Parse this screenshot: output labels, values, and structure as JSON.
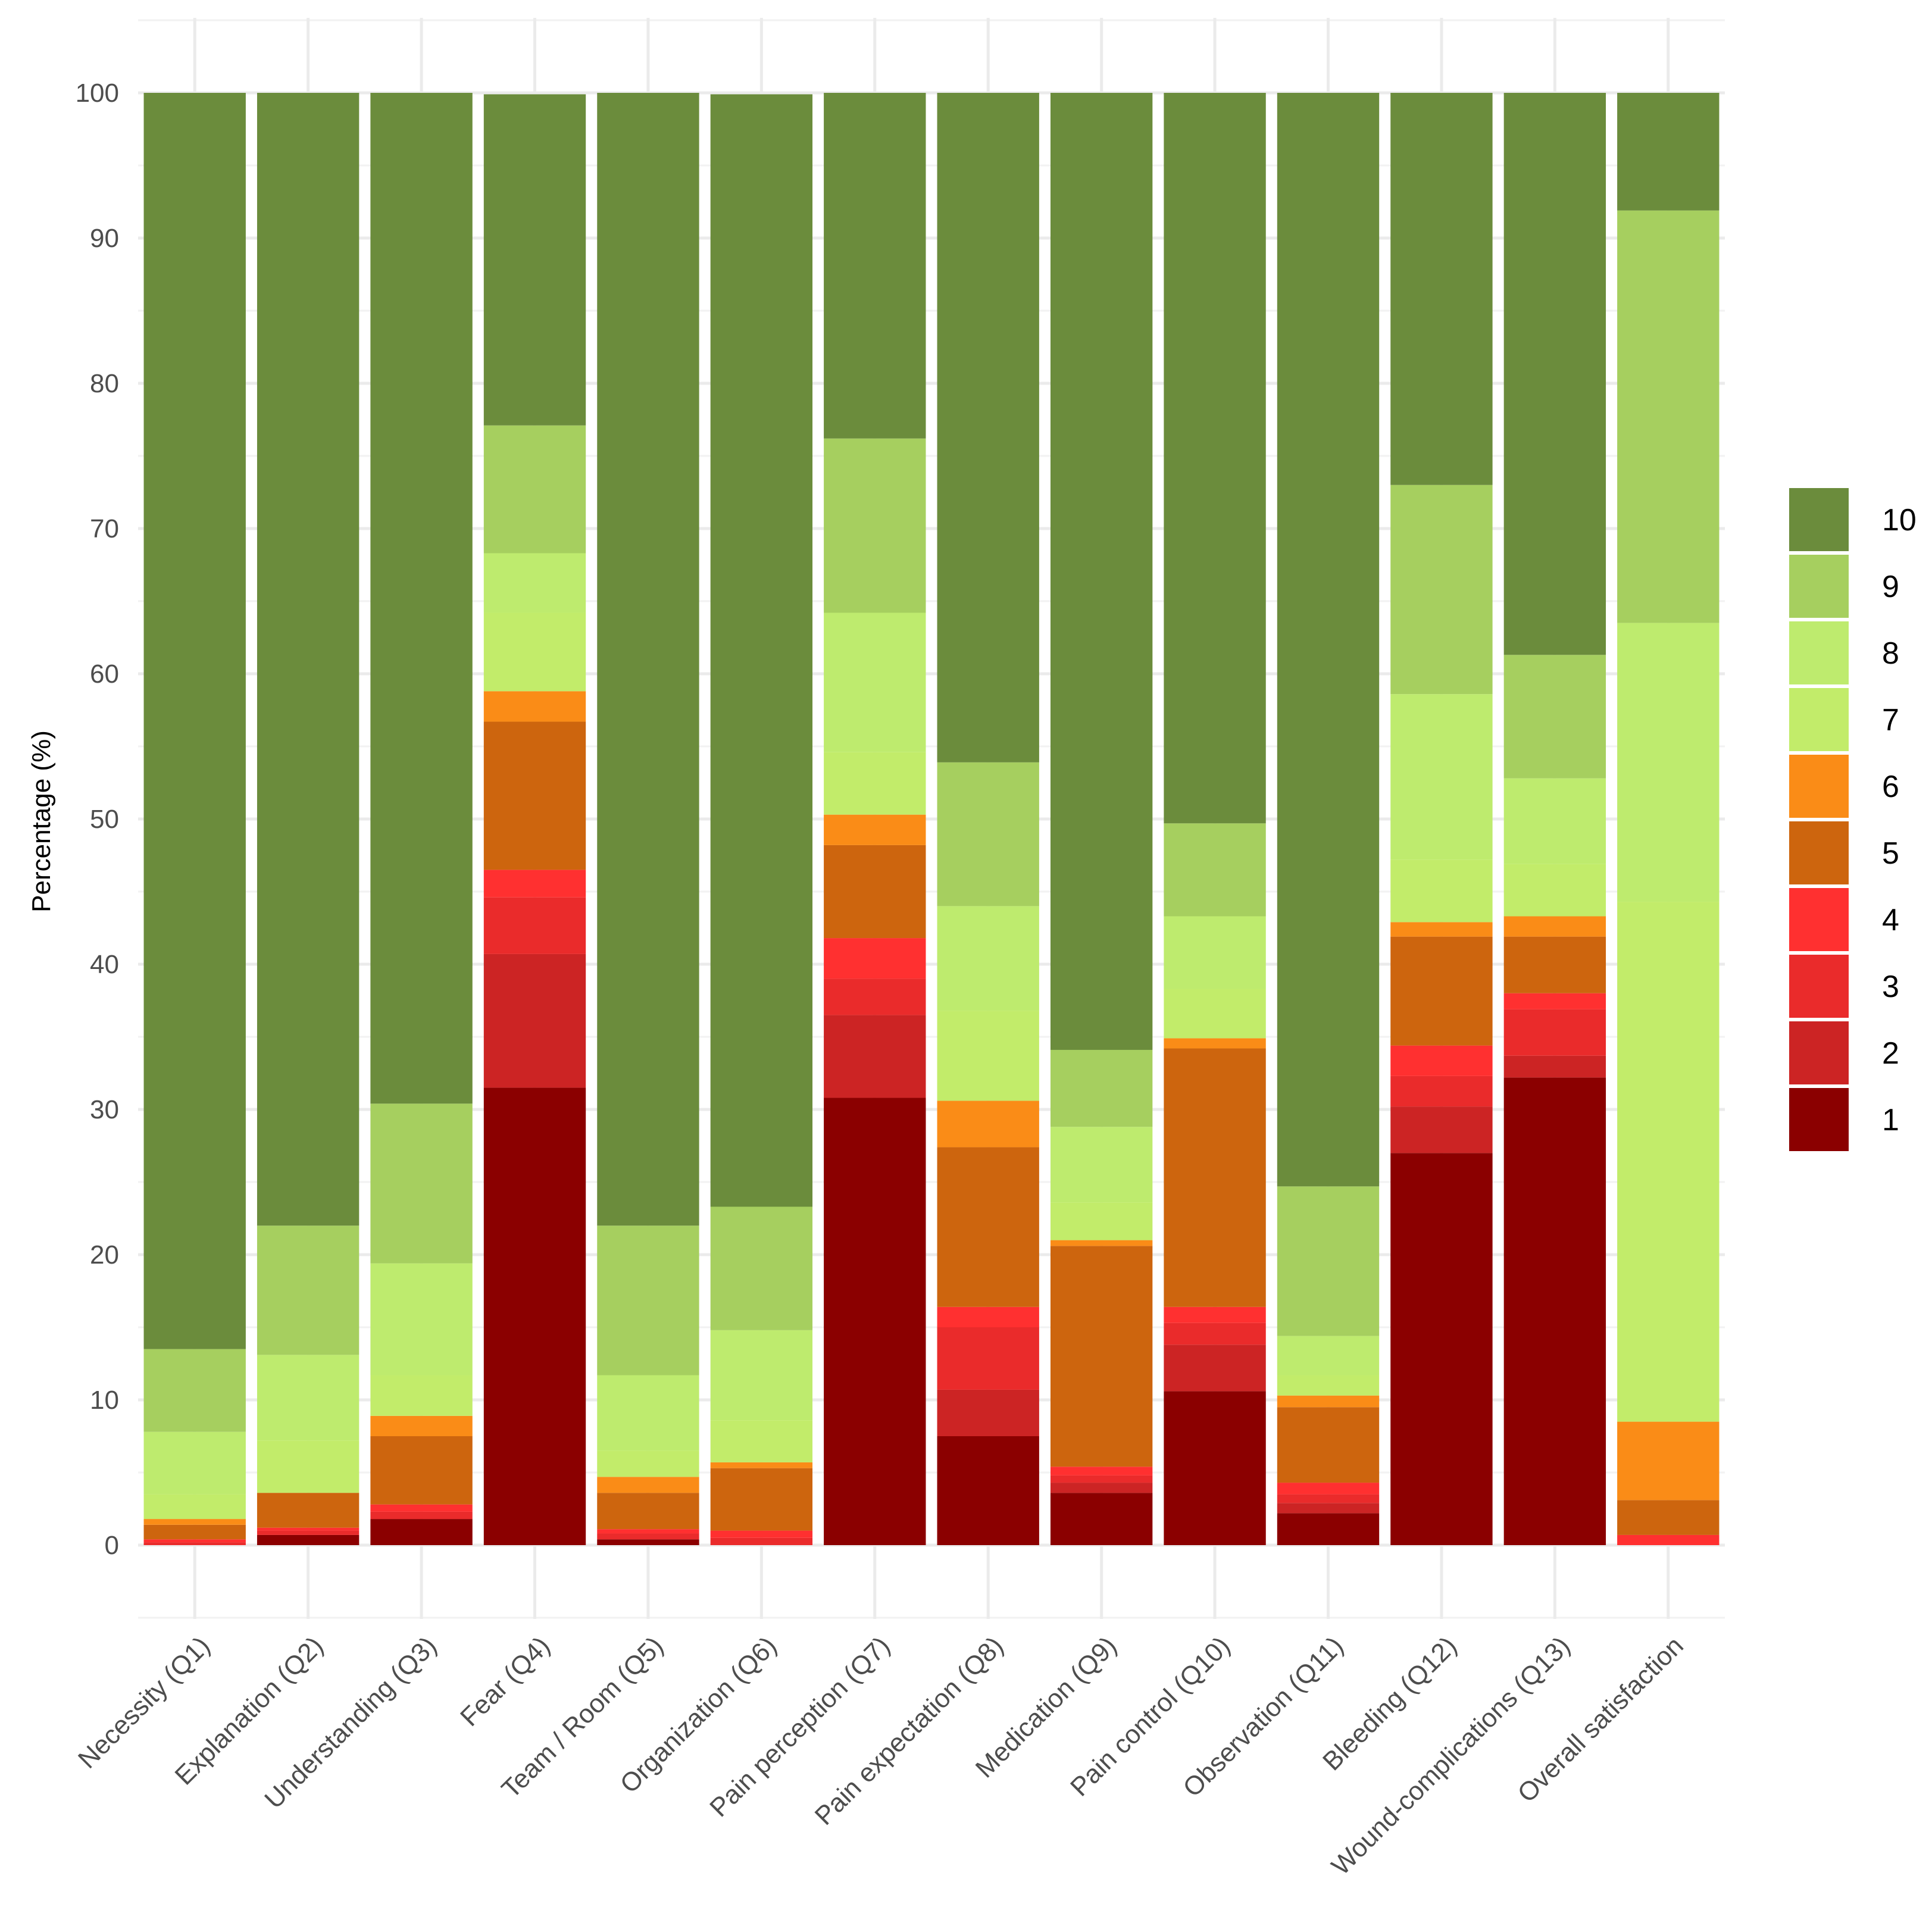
{
  "chart_data": {
    "type": "bar",
    "stacked": true,
    "title": "",
    "xlabel": "",
    "ylabel": "Percentage (%)",
    "ylim": [
      0,
      100
    ],
    "y_ticks": [
      0,
      10,
      20,
      30,
      40,
      50,
      60,
      70,
      80,
      90,
      100
    ],
    "grid": true,
    "legend_position": "right",
    "categories": [
      "Necessity (Q1)",
      "Explanation (Q2)",
      "Understanding (Q3)",
      "Fear (Q4)",
      "Team / Room (Q5)",
      "Organization (Q6)",
      "Pain perception (Q7)",
      "Pain expectation (Q8)",
      "Medication (Q9)",
      "Pain control (Q10)",
      "Observation (Q11)",
      "Bleeding (Q12)",
      "Wound-complications (Q13)",
      "Overall satisfaction"
    ],
    "series": [
      {
        "name": "1",
        "color": "#8B0000",
        "values": [
          0.0,
          0.7,
          1.8,
          31.5,
          0.4,
          0.0,
          30.8,
          7.5,
          3.6,
          10.6,
          2.2,
          27.0,
          32.2,
          0.0
        ]
      },
      {
        "name": "2",
        "color": "#CC2424",
        "values": [
          0.0,
          0.0,
          0.0,
          9.2,
          0.0,
          0.0,
          5.7,
          3.2,
          0.7,
          3.2,
          0.7,
          3.2,
          1.5,
          0.0
        ]
      },
      {
        "name": "3",
        "color": "#EA2B2B",
        "values": [
          0.2,
          0.3,
          0.5,
          3.9,
          0.4,
          0.5,
          2.5,
          4.3,
          0.5,
          1.5,
          0.6,
          2.1,
          3.2,
          0.0
        ]
      },
      {
        "name": "4",
        "color": "#FF3030",
        "values": [
          0.2,
          0.2,
          0.5,
          1.9,
          0.3,
          0.5,
          2.8,
          1.4,
          0.6,
          1.1,
          0.8,
          2.1,
          1.1,
          0.7
        ]
      },
      {
        "name": "5",
        "color": "#CD650E",
        "values": [
          1.0,
          2.4,
          4.7,
          10.2,
          2.5,
          4.3,
          6.4,
          11.0,
          15.2,
          17.8,
          5.2,
          7.5,
          3.9,
          2.4
        ]
      },
      {
        "name": "6",
        "color": "#FA8C17",
        "values": [
          0.4,
          0.0,
          1.4,
          2.1,
          1.1,
          0.4,
          2.1,
          3.2,
          0.4,
          0.7,
          0.8,
          1.0,
          1.4,
          5.4
        ]
      },
      {
        "name": "7",
        "color": "#C2EC6A",
        "values": [
          1.7,
          3.6,
          2.8,
          5.4,
          1.8,
          2.9,
          4.3,
          6.2,
          2.6,
          3.4,
          1.4,
          4.3,
          3.6,
          35.8
        ]
      },
      {
        "name": "8",
        "color": "#BEEB6E",
        "values": [
          4.3,
          5.9,
          7.7,
          4.1,
          5.2,
          6.2,
          9.6,
          7.2,
          5.2,
          5.0,
          2.7,
          11.4,
          5.9,
          19.2
        ]
      },
      {
        "name": "9",
        "color": "#A6CF5F",
        "values": [
          5.7,
          8.9,
          11.0,
          8.8,
          10.3,
          8.5,
          12.0,
          9.9,
          5.3,
          6.4,
          10.3,
          14.4,
          8.5,
          28.4
        ]
      },
      {
        "name": "10",
        "color": "#6B8C3C",
        "values": [
          86.5,
          78.0,
          69.6,
          22.8,
          78.0,
          76.6,
          23.8,
          46.1,
          65.9,
          50.3,
          75.3,
          27.0,
          38.7,
          8.1
        ]
      }
    ]
  }
}
